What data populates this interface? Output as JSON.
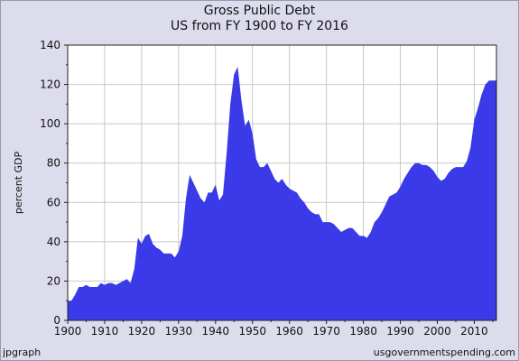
{
  "chart_data": {
    "type": "area",
    "title": "Gross Public Debt",
    "subtitle": "US from FY 1900 to FY 2016",
    "xlabel": "",
    "ylabel": "percent GDP",
    "xlim": [
      1900,
      2016
    ],
    "ylim": [
      0,
      140
    ],
    "xticks": [
      1900,
      1910,
      1920,
      1930,
      1940,
      1950,
      1960,
      1970,
      1980,
      1990,
      2000,
      2010
    ],
    "yticks": [
      0,
      20,
      40,
      60,
      80,
      100,
      120,
      140
    ],
    "grid": true,
    "fill_color": "#3a3ae8",
    "series": [
      {
        "values": [
          [
            1900,
            10
          ],
          [
            1901,
            10
          ],
          [
            1902,
            13
          ],
          [
            1903,
            17
          ],
          [
            1904,
            17
          ],
          [
            1905,
            18
          ],
          [
            1906,
            17
          ],
          [
            1907,
            17
          ],
          [
            1908,
            17
          ],
          [
            1909,
            19
          ],
          [
            1910,
            18
          ],
          [
            1911,
            19
          ],
          [
            1912,
            19
          ],
          [
            1913,
            18
          ],
          [
            1914,
            19
          ],
          [
            1915,
            20
          ],
          [
            1916,
            21
          ],
          [
            1917,
            19
          ],
          [
            1918,
            26
          ],
          [
            1919,
            42
          ],
          [
            1920,
            39
          ],
          [
            1921,
            43
          ],
          [
            1922,
            44
          ],
          [
            1923,
            39
          ],
          [
            1924,
            37
          ],
          [
            1925,
            36
          ],
          [
            1926,
            34
          ],
          [
            1927,
            34
          ],
          [
            1928,
            34
          ],
          [
            1929,
            32
          ],
          [
            1930,
            35
          ],
          [
            1931,
            43
          ],
          [
            1932,
            62
          ],
          [
            1933,
            74
          ],
          [
            1934,
            70
          ],
          [
            1935,
            66
          ],
          [
            1936,
            62
          ],
          [
            1937,
            60
          ],
          [
            1938,
            65
          ],
          [
            1939,
            65
          ],
          [
            1940,
            69
          ],
          [
            1941,
            61
          ],
          [
            1942,
            64
          ],
          [
            1943,
            85
          ],
          [
            1944,
            110
          ],
          [
            1945,
            125
          ],
          [
            1946,
            129
          ],
          [
            1947,
            112
          ],
          [
            1948,
            99
          ],
          [
            1949,
            102
          ],
          [
            1950,
            95
          ],
          [
            1951,
            82
          ],
          [
            1952,
            78
          ],
          [
            1953,
            78
          ],
          [
            1954,
            80
          ],
          [
            1955,
            76
          ],
          [
            1956,
            72
          ],
          [
            1957,
            70
          ],
          [
            1958,
            72
          ],
          [
            1959,
            69
          ],
          [
            1960,
            67
          ],
          [
            1961,
            66
          ],
          [
            1962,
            65
          ],
          [
            1963,
            62
          ],
          [
            1964,
            60
          ],
          [
            1965,
            57
          ],
          [
            1966,
            55
          ],
          [
            1967,
            54
          ],
          [
            1968,
            54
          ],
          [
            1969,
            50
          ],
          [
            1970,
            50
          ],
          [
            1971,
            50
          ],
          [
            1972,
            49
          ],
          [
            1973,
            47
          ],
          [
            1974,
            45
          ],
          [
            1975,
            46
          ],
          [
            1976,
            47
          ],
          [
            1977,
            47
          ],
          [
            1978,
            45
          ],
          [
            1979,
            43
          ],
          [
            1980,
            43
          ],
          [
            1981,
            42
          ],
          [
            1982,
            45
          ],
          [
            1983,
            50
          ],
          [
            1984,
            52
          ],
          [
            1985,
            55
          ],
          [
            1986,
            59
          ],
          [
            1987,
            63
          ],
          [
            1988,
            64
          ],
          [
            1989,
            65
          ],
          [
            1990,
            68
          ],
          [
            1991,
            72
          ],
          [
            1992,
            75
          ],
          [
            1993,
            78
          ],
          [
            1994,
            80
          ],
          [
            1995,
            80
          ],
          [
            1996,
            79
          ],
          [
            1997,
            79
          ],
          [
            1998,
            78
          ],
          [
            1999,
            76
          ],
          [
            2000,
            73
          ],
          [
            2001,
            71
          ],
          [
            2002,
            72
          ],
          [
            2003,
            75
          ],
          [
            2004,
            77
          ],
          [
            2005,
            78
          ],
          [
            2006,
            78
          ],
          [
            2007,
            78
          ],
          [
            2008,
            81
          ],
          [
            2009,
            88
          ],
          [
            2010,
            102
          ],
          [
            2011,
            108
          ],
          [
            2012,
            115
          ],
          [
            2013,
            120
          ],
          [
            2014,
            122
          ],
          [
            2015,
            122
          ],
          [
            2016,
            122
          ]
        ]
      }
    ]
  },
  "footer": {
    "left": "jpgraph",
    "right": "usgovernmentspending.com"
  }
}
